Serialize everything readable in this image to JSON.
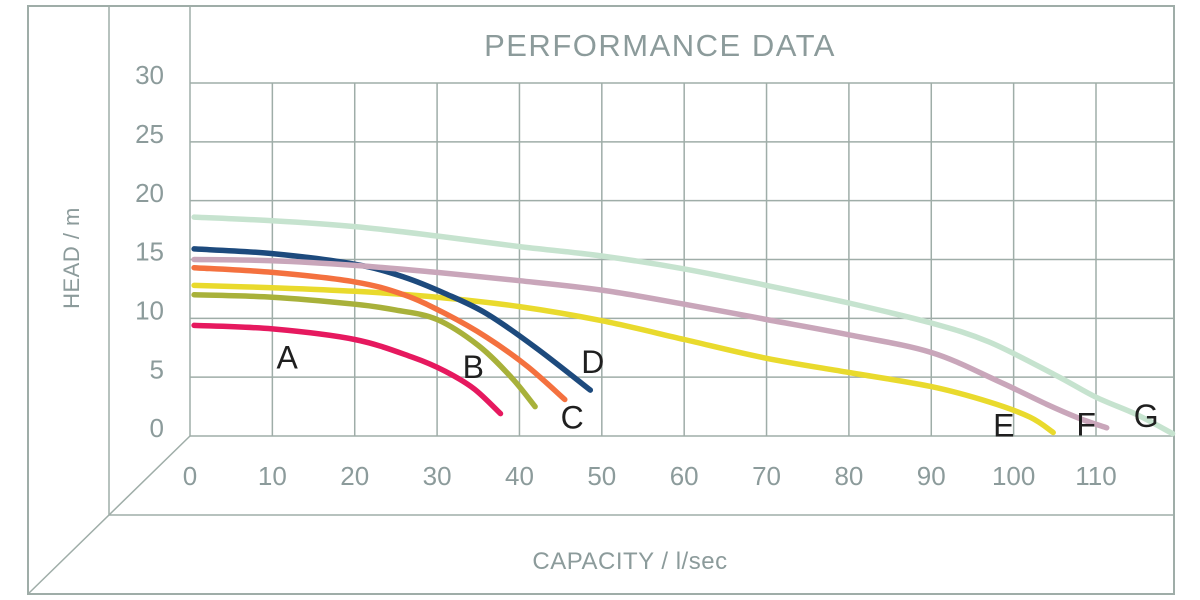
{
  "colors": {
    "background": "#ffffff",
    "grid": "#9fada8",
    "frame": "#9fada8",
    "tick_text": "#8c9b9b",
    "curve_label_text": "#1f1f1f"
  },
  "chart_data": {
    "type": "line",
    "title": "PERFORMANCE DATA",
    "xlabel": "CAPACITY / l/sec",
    "ylabel": "HEAD / m",
    "x_ticks": [
      0,
      10,
      20,
      30,
      40,
      50,
      60,
      70,
      80,
      90,
      100,
      110
    ],
    "y_ticks": [
      0,
      5,
      10,
      15,
      20,
      25,
      30
    ],
    "xlim": [
      0,
      119.5
    ],
    "ylim": [
      0,
      30
    ],
    "grid": true,
    "legend_position": "labels-on-curves",
    "series": [
      {
        "name": "G",
        "color": "#c6e3cf",
        "label_at": {
          "x": 116.1,
          "y": 1.7
        },
        "points": [
          [
            0.5,
            18.6
          ],
          [
            10,
            18.3
          ],
          [
            20,
            17.8
          ],
          [
            30,
            17.0
          ],
          [
            40,
            16.1
          ],
          [
            50,
            15.3
          ],
          [
            60,
            14.2
          ],
          [
            70,
            12.8
          ],
          [
            80,
            11.3
          ],
          [
            90,
            9.6
          ],
          [
            97,
            8.0
          ],
          [
            105,
            5.2
          ],
          [
            110,
            3.3
          ],
          [
            115,
            1.8
          ],
          [
            119.3,
            0.2
          ]
        ]
      },
      {
        "name": "E",
        "color": "#e9da2d",
        "label_at": {
          "x": 98.8,
          "y": 0.9
        },
        "points": [
          [
            0.5,
            12.8
          ],
          [
            10,
            12.6
          ],
          [
            20,
            12.3
          ],
          [
            30,
            11.8
          ],
          [
            40,
            11.0
          ],
          [
            50,
            9.8
          ],
          [
            60,
            8.2
          ],
          [
            70,
            6.6
          ],
          [
            80,
            5.4
          ],
          [
            90,
            4.2
          ],
          [
            97,
            2.9
          ],
          [
            102,
            1.6
          ],
          [
            104.8,
            0.3
          ]
        ]
      },
      {
        "name": "B",
        "color": "#a8b13a",
        "label_at": {
          "x": 34.4,
          "y": 5.9
        },
        "points": [
          [
            0.5,
            12.0
          ],
          [
            10,
            11.8
          ],
          [
            20,
            11.2
          ],
          [
            25,
            10.7
          ],
          [
            30,
            9.9
          ],
          [
            35,
            7.7
          ],
          [
            39,
            5.0
          ],
          [
            41.9,
            2.5
          ]
        ]
      },
      {
        "name": "A",
        "color": "#e6195f",
        "label_at": {
          "x": 11.8,
          "y": 6.7
        },
        "points": [
          [
            0.5,
            9.4
          ],
          [
            10,
            9.1
          ],
          [
            20,
            8.2
          ],
          [
            27,
            6.7
          ],
          [
            31,
            5.5
          ],
          [
            34.5,
            4.0
          ],
          [
            37.7,
            1.9
          ]
        ]
      },
      {
        "name": "C",
        "color": "#f4713f",
        "label_at": {
          "x": 46.4,
          "y": 1.6
        },
        "points": [
          [
            0.5,
            14.3
          ],
          [
            10,
            13.9
          ],
          [
            20,
            13.1
          ],
          [
            26,
            12.0
          ],
          [
            31,
            10.4
          ],
          [
            36,
            8.4
          ],
          [
            41,
            5.9
          ],
          [
            45.5,
            3.1
          ]
        ]
      },
      {
        "name": "D",
        "color": "#1d4a7d",
        "label_at": {
          "x": 48.9,
          "y": 6.3
        },
        "points": [
          [
            0.5,
            15.9
          ],
          [
            10,
            15.5
          ],
          [
            20,
            14.6
          ],
          [
            26,
            13.5
          ],
          [
            31,
            12.1
          ],
          [
            36,
            10.4
          ],
          [
            42,
            7.5
          ],
          [
            48.6,
            3.9
          ]
        ]
      },
      {
        "name": "F",
        "color": "#c9a6ba",
        "label_at": {
          "x": 108.8,
          "y": 1.0
        },
        "points": [
          [
            0.5,
            15.0
          ],
          [
            10,
            14.9
          ],
          [
            20,
            14.5
          ],
          [
            30,
            13.9
          ],
          [
            40,
            13.2
          ],
          [
            50,
            12.4
          ],
          [
            60,
            11.2
          ],
          [
            70,
            9.9
          ],
          [
            80,
            8.6
          ],
          [
            90,
            7.1
          ],
          [
            98,
            4.7
          ],
          [
            104,
            2.7
          ],
          [
            108,
            1.5
          ],
          [
            111.3,
            0.7
          ]
        ]
      }
    ]
  }
}
